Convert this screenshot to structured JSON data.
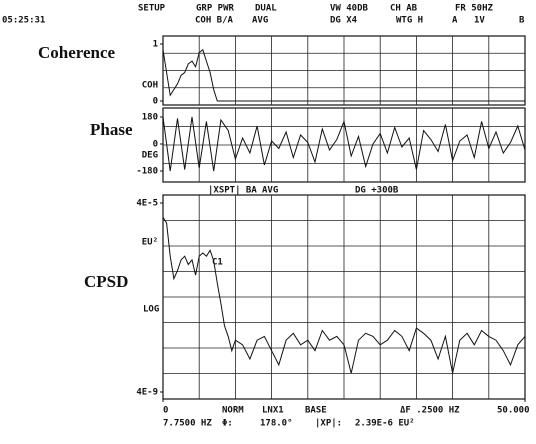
{
  "header": {
    "items": [
      "SETUP",
      "GRP PWR",
      "DUAL",
      "VW  40DB",
      "CH AB",
      "FR  50HZ",
      "05:25:31",
      "COH B/A",
      "AVG",
      "DG X4",
      "WTG H",
      "A",
      "1V",
      "B"
    ]
  },
  "chart_data": [
    {
      "type": "line",
      "title": "Coherence",
      "ylabel": "COH",
      "color": "#111",
      "x": [
        0,
        1,
        2,
        2.5,
        3,
        3.5,
        4,
        4.5,
        5,
        5.5,
        6,
        6.5,
        7,
        7.5,
        8,
        50
      ],
      "values": [
        0.9,
        0.1,
        0.3,
        0.45,
        0.5,
        0.65,
        0.7,
        0.6,
        0.85,
        0.9,
        0.7,
        0.5,
        0.2,
        0,
        0,
        0
      ],
      "xlim": [
        0,
        50
      ],
      "ylim": [
        0,
        1
      ],
      "yticks": [
        0,
        1
      ]
    },
    {
      "type": "line",
      "title": "Phase",
      "ylabel": "DEG",
      "color": "#111",
      "x": [
        0,
        1,
        2,
        3,
        4,
        5,
        6,
        7,
        8,
        9,
        10,
        11,
        12,
        13,
        14,
        15,
        16,
        17,
        18,
        19,
        20,
        21,
        22,
        23,
        24,
        25,
        26,
        27,
        28,
        29,
        30,
        31,
        32,
        33,
        34,
        35,
        36,
        37,
        38,
        39,
        40,
        41,
        42,
        43,
        44,
        45,
        46,
        47,
        48,
        49,
        50
      ],
      "values": [
        180,
        -180,
        170,
        -170,
        180,
        -160,
        150,
        -180,
        160,
        90,
        -100,
        40,
        -60,
        120,
        -140,
        20,
        -30,
        80,
        -90,
        60,
        10,
        -120,
        100,
        -40,
        30,
        150,
        -80,
        50,
        -150,
        0,
        70,
        -60,
        110,
        -20,
        40,
        -170,
        90,
        30,
        -50,
        130,
        -110,
        20,
        60,
        -90,
        150,
        -30,
        80,
        -60,
        10,
        120,
        -40
      ],
      "xlim": [
        0,
        50
      ],
      "ylim": [
        -180,
        180
      ],
      "yticks": [
        -180,
        0,
        180
      ]
    },
    {
      "type": "line",
      "title": "CPSD",
      "ylabel": "EU²",
      "log_scale": true,
      "color": "#111",
      "annotations": [
        "|XSPT| BA",
        "AVG",
        "DG +300B",
        "C1",
        "LOG"
      ],
      "x": [
        0,
        0.5,
        1,
        1.5,
        2,
        2.5,
        3,
        3.5,
        4,
        4.5,
        5,
        5.5,
        6,
        6.5,
        7,
        7.5,
        8,
        8.5,
        9,
        9.5,
        10,
        11,
        12,
        13,
        14,
        15,
        16,
        17,
        18,
        19,
        20,
        21,
        22,
        23,
        24,
        25,
        26,
        27,
        28,
        29,
        30,
        31,
        32,
        33,
        34,
        35,
        36,
        37,
        38,
        39,
        40,
        41,
        42,
        43,
        44,
        45,
        46,
        47,
        48,
        49,
        50
      ],
      "values": [
        2e-05,
        1.5e-05,
        3e-06,
        1e-06,
        1.5e-06,
        2.5e-06,
        3e-06,
        2e-06,
        2.5e-06,
        1.2e-06,
        3e-06,
        3.5e-06,
        3e-06,
        4e-06,
        2.4e-06,
        8e-07,
        3e-07,
        1e-07,
        6e-08,
        3e-08,
        5e-08,
        4e-08,
        2e-08,
        5e-08,
        6e-08,
        3e-08,
        1.5e-08,
        5e-08,
        7e-08,
        4e-08,
        5e-08,
        3e-08,
        8e-08,
        5e-08,
        6e-08,
        4e-08,
        1e-08,
        5e-08,
        7e-08,
        6e-08,
        4e-08,
        5e-08,
        8e-08,
        6e-08,
        3e-08,
        9e-08,
        7e-08,
        5e-08,
        2e-08,
        6e-08,
        1e-08,
        5e-08,
        7e-08,
        4e-08,
        8e-08,
        6e-08,
        5e-08,
        3e-08,
        1.5e-08,
        4e-08,
        6e-08
      ],
      "xlim": [
        0,
        50
      ],
      "ylim": [
        4e-09,
        4e-05
      ],
      "yticks": [
        {
          "value": 4e-09,
          "label": "4E-9"
        },
        {
          "value": 4e-05,
          "label": "4E-5"
        }
      ],
      "xticks": [
        0,
        {
          "value": 50,
          "label": "50.000"
        }
      ]
    }
  ],
  "footer": {
    "items": [
      "NORM",
      "LNX1",
      "BASE",
      "ΔF .2500 HZ",
      "7.7500 HZ",
      "Φ:",
      "178.0°",
      "|XP|:",
      "2.39E-6 EU²"
    ]
  }
}
